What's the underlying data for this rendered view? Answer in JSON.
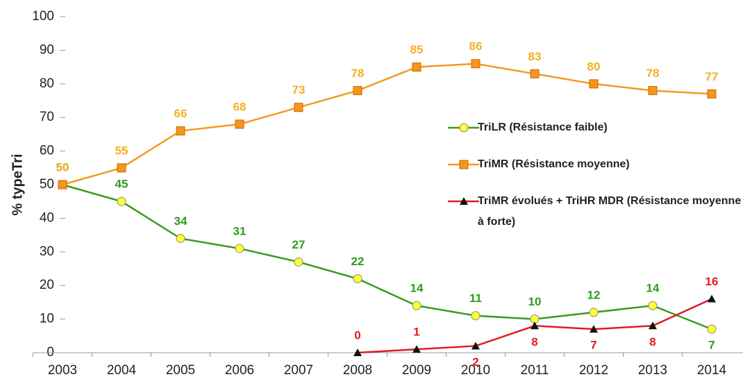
{
  "chart_data": {
    "type": "line",
    "ylabel": "% typeTri",
    "categories": [
      "2003",
      "2004",
      "2005",
      "2006",
      "2007",
      "2008",
      "2009",
      "2010",
      "2011",
      "2012",
      "2013",
      "2014"
    ],
    "series": [
      {
        "name": "TriLR (Résistance faible)",
        "color": "#3a9a1c",
        "marker": "circle",
        "marker_color": "#ffff33",
        "label_color": "#2e9a1e",
        "values": [
          50,
          45,
          34,
          31,
          27,
          22,
          14,
          11,
          10,
          12,
          14,
          7
        ]
      },
      {
        "name": "TriMR (Résistance moyenne)",
        "color": "#f39a1e",
        "marker": "square",
        "marker_color": "#f7941d",
        "label_color": "#f2b020",
        "values": [
          50,
          55,
          66,
          68,
          73,
          78,
          85,
          86,
          83,
          80,
          78,
          77
        ]
      },
      {
        "name": "TriMR évolués + TriHR MDR (Résistance moyenne à forte)",
        "color": "#e01b22",
        "marker": "triangle",
        "marker_color": "#111111",
        "label_color": "#e01b22",
        "values": [
          null,
          null,
          null,
          null,
          null,
          0,
          1,
          2,
          8,
          7,
          8,
          16
        ]
      }
    ],
    "ylim": [
      0,
      100
    ],
    "yticks": [
      0,
      10,
      20,
      30,
      40,
      50,
      60,
      70,
      80,
      90,
      100
    ],
    "grid": false,
    "legend": "right"
  }
}
